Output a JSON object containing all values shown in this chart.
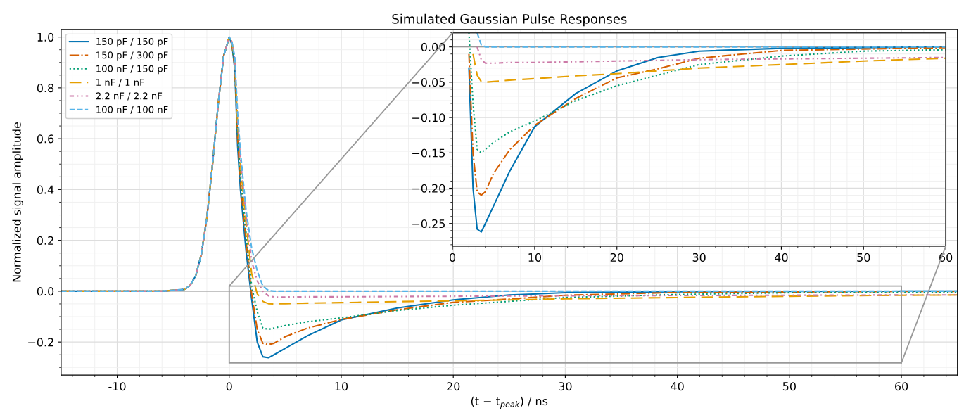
{
  "chart_data": [
    {
      "type": "line",
      "title": "Simulated Gaussian Pulse Responses",
      "xlabel": "(t − t$_{peak}$) / ns",
      "ylabel": "Normalized signal amplitude",
      "x": [
        -15,
        -6,
        -4,
        -3.5,
        -3,
        -2.5,
        -2,
        -1.5,
        -1,
        -0.5,
        0,
        0.25,
        0.5,
        0.75,
        1,
        1.5,
        2,
        2.5,
        3,
        3.5,
        4,
        5,
        7,
        10,
        15,
        20,
        25,
        30,
        40,
        50,
        60,
        65
      ],
      "series": [
        {
          "name": "150 pF / 150 pF",
          "color": "#0072b2",
          "line_style": "solid",
          "values": [
            0,
            0,
            0.007,
            0.022,
            0.06,
            0.142,
            0.287,
            0.495,
            0.73,
            0.925,
            1.0,
            0.97,
            0.87,
            0.57,
            0.4,
            0.16,
            -0.03,
            -0.2,
            -0.258,
            -0.262,
            -0.25,
            -0.225,
            -0.175,
            -0.113,
            -0.066,
            -0.034,
            -0.015,
            -0.006,
            -0.002,
            -0.001,
            0,
            0
          ]
        },
        {
          "name": "150 pF / 300 pF",
          "color": "#d55e00",
          "line_style": "dashdot",
          "values": [
            0,
            0,
            0.007,
            0.022,
            0.06,
            0.142,
            0.287,
            0.495,
            0.73,
            0.925,
            1.0,
            0.97,
            0.88,
            0.6,
            0.43,
            0.2,
            -0.01,
            -0.15,
            -0.205,
            -0.21,
            -0.205,
            -0.179,
            -0.145,
            -0.111,
            -0.073,
            -0.044,
            -0.031,
            -0.016,
            -0.005,
            -0.003,
            -0.001,
            -0.001
          ]
        },
        {
          "name": "100 nF / 150 pF",
          "color": "#009e73",
          "line_style": "dotted",
          "values": [
            0,
            0,
            0.007,
            0.022,
            0.06,
            0.142,
            0.287,
            0.495,
            0.73,
            0.925,
            1.0,
            0.975,
            0.89,
            0.63,
            0.46,
            0.23,
            0.02,
            -0.08,
            -0.145,
            -0.15,
            -0.145,
            -0.135,
            -0.12,
            -0.105,
            -0.076,
            -0.055,
            -0.04,
            -0.025,
            -0.013,
            -0.006,
            -0.004,
            -0.003
          ]
        },
        {
          "name": "1 nF / 1 nF",
          "color": "#e69f00",
          "line_style": "longdashed",
          "values": [
            0,
            0,
            0.007,
            0.022,
            0.06,
            0.142,
            0.287,
            0.495,
            0.73,
            0.925,
            1.0,
            0.98,
            0.9,
            0.66,
            0.5,
            0.27,
            0.07,
            -0.01,
            -0.04,
            -0.049,
            -0.05,
            -0.049,
            -0.047,
            -0.045,
            -0.041,
            -0.038,
            -0.034,
            -0.03,
            -0.025,
            -0.02,
            -0.016,
            -0.015
          ]
        },
        {
          "name": "2.2 nF / 2.2 nF",
          "color": "#cc79a7",
          "line_style": "dashdotdotted",
          "values": [
            0,
            0,
            0.007,
            0.022,
            0.06,
            0.142,
            0.287,
            0.495,
            0.73,
            0.925,
            1.0,
            0.98,
            0.91,
            0.68,
            0.52,
            0.3,
            0.12,
            0.04,
            0.0,
            -0.018,
            -0.023,
            -0.023,
            -0.022,
            -0.022,
            -0.021,
            -0.02,
            -0.019,
            -0.018,
            -0.017,
            -0.016,
            -0.015,
            -0.015
          ]
        },
        {
          "name": "100 nF / 100 nF",
          "color": "#56b4e9",
          "line_style": "dashed",
          "values": [
            0,
            0,
            0.007,
            0.022,
            0.06,
            0.142,
            0.287,
            0.495,
            0.73,
            0.925,
            1.0,
            0.98,
            0.92,
            0.7,
            0.55,
            0.32,
            0.17,
            0.08,
            0.02,
            0.003,
            0,
            0,
            0,
            0,
            0,
            0,
            0,
            0,
            0,
            0,
            0,
            0
          ]
        }
      ],
      "xlim": [
        -15,
        65
      ],
      "ylim": [
        -0.33,
        1.03
      ],
      "xticks": [
        {
          "value": -10,
          "label": "-10"
        },
        0,
        10,
        20,
        30,
        40,
        50,
        60
      ],
      "yticks": [
        {
          "value": -0.2,
          "label": "−0.2"
        },
        {
          "value": 0,
          "label": "0.0"
        },
        0.2,
        0.4,
        0.6,
        0.8,
        {
          "value": 1,
          "label": "1.0"
        }
      ],
      "ref_lines": [
        {
          "axis": "y",
          "value": 0,
          "color": "#999999"
        }
      ],
      "grid": true,
      "legend": "top left"
    },
    {
      "type": "line",
      "x": [
        2,
        2.5,
        3,
        3.5,
        4,
        5,
        7,
        10,
        15,
        20,
        25,
        30,
        40,
        50,
        60
      ],
      "series": [
        {
          "color": "#0072b2",
          "line_style": "solid",
          "values": [
            -0.03,
            -0.2,
            -0.258,
            -0.262,
            -0.25,
            -0.225,
            -0.175,
            -0.113,
            -0.066,
            -0.034,
            -0.015,
            -0.006,
            -0.002,
            -0.001,
            0
          ]
        },
        {
          "color": "#d55e00",
          "line_style": "dashdot",
          "values": [
            -0.01,
            -0.15,
            -0.205,
            -0.21,
            -0.205,
            -0.179,
            -0.145,
            -0.111,
            -0.073,
            -0.044,
            -0.031,
            -0.016,
            -0.005,
            -0.003,
            -0.001
          ]
        },
        {
          "color": "#009e73",
          "line_style": "dotted",
          "values": [
            0.02,
            -0.08,
            -0.145,
            -0.15,
            -0.145,
            -0.135,
            -0.12,
            -0.105,
            -0.076,
            -0.055,
            -0.04,
            -0.025,
            -0.013,
            -0.006,
            -0.004
          ]
        },
        {
          "color": "#e69f00",
          "line_style": "longdashed",
          "values": [
            null,
            -0.01,
            -0.04,
            -0.049,
            -0.05,
            -0.049,
            -0.047,
            -0.045,
            -0.041,
            -0.038,
            -0.034,
            -0.03,
            -0.025,
            -0.02,
            -0.016
          ]
        },
        {
          "color": "#cc79a7",
          "line_style": "dashdotdotted",
          "values": [
            null,
            null,
            0.0,
            -0.018,
            -0.023,
            -0.023,
            -0.022,
            -0.022,
            -0.021,
            -0.02,
            -0.019,
            -0.018,
            -0.017,
            -0.016,
            -0.015
          ]
        },
        {
          "color": "#56b4e9",
          "line_style": "dashed",
          "values": [
            null,
            null,
            0.02,
            0.003,
            0,
            0,
            0,
            0,
            0,
            0,
            0,
            0,
            0,
            0,
            0
          ]
        }
      ],
      "xlim": [
        0,
        60
      ],
      "ylim": [
        -0.282,
        0.02
      ],
      "xticks": [
        0,
        10,
        20,
        30,
        40,
        50,
        60
      ],
      "yticks": [
        {
          "value": -0.25,
          "label": "−0.25"
        },
        {
          "value": -0.2,
          "label": "−0.20"
        },
        {
          "value": -0.15,
          "label": "−0.15"
        },
        {
          "value": -0.1,
          "label": "−0.10"
        },
        {
          "value": -0.05,
          "label": "−0.05"
        },
        {
          "value": 0,
          "label": "0.00"
        }
      ],
      "ref_lines": [
        {
          "axis": "y",
          "value": 0,
          "color": "#999999"
        }
      ],
      "grid": true
    }
  ]
}
